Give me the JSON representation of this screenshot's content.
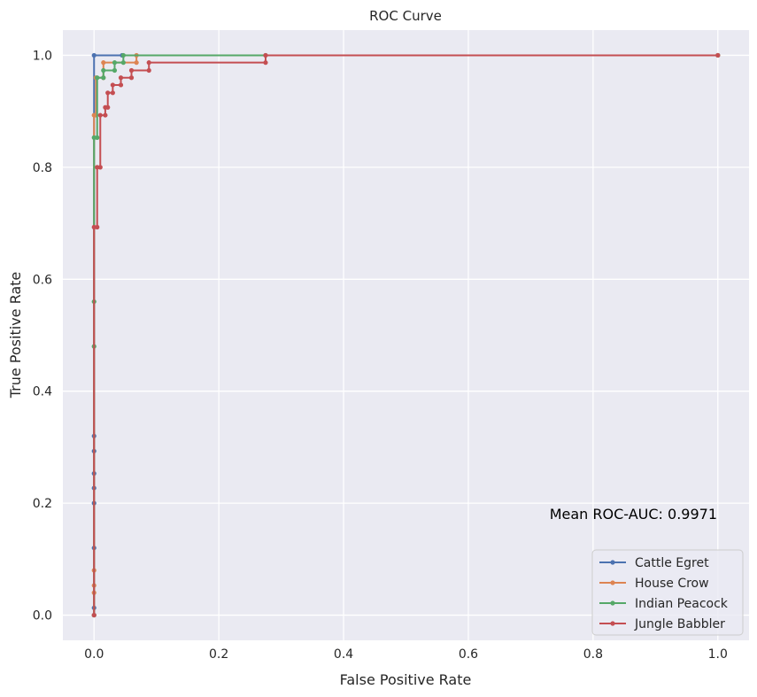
{
  "chart_data": {
    "type": "line",
    "title": "ROC Curve",
    "xlabel": "False Positive Rate",
    "ylabel": "True Positive Rate",
    "xlim": [
      -0.05,
      1.05
    ],
    "ylim": [
      -0.045,
      1.045
    ],
    "xticks": [
      0.0,
      0.2,
      0.4,
      0.6,
      0.8,
      1.0
    ],
    "yticks": [
      0.0,
      0.2,
      0.4,
      0.6,
      0.8,
      1.0
    ],
    "grid": true,
    "legend_position": "lower-right",
    "annotation": "Mean ROC-AUC: 0.9971",
    "series": [
      {
        "name": "Cattle Egret",
        "color": "#4c72b0",
        "points": [
          [
            0,
            0
          ],
          [
            0,
            0.013
          ],
          [
            0,
            0.12
          ],
          [
            0,
            0.2
          ],
          [
            0,
            0.227
          ],
          [
            0,
            0.253
          ],
          [
            0,
            0.293
          ],
          [
            0,
            0.32
          ],
          [
            0,
            1.0
          ],
          [
            0.045,
            1.0
          ],
          [
            1.0,
            1.0
          ]
        ]
      },
      {
        "name": "House Crow",
        "color": "#dd8452",
        "points": [
          [
            0,
            0
          ],
          [
            0,
            0.04
          ],
          [
            0,
            0.053
          ],
          [
            0,
            0.08
          ],
          [
            0,
            0.893
          ],
          [
            0.003,
            0.893
          ],
          [
            0.003,
            0.96
          ],
          [
            0.015,
            0.96
          ],
          [
            0.015,
            0.987
          ],
          [
            0.068,
            0.987
          ],
          [
            0.068,
            1.0
          ],
          [
            1.0,
            1.0
          ]
        ]
      },
      {
        "name": "Indian Peacock",
        "color": "#55a868",
        "points": [
          [
            0,
            0
          ],
          [
            0,
            0.48
          ],
          [
            0,
            0.56
          ],
          [
            0,
            0.853
          ],
          [
            0.005,
            0.853
          ],
          [
            0.005,
            0.96
          ],
          [
            0.015,
            0.96
          ],
          [
            0.015,
            0.973
          ],
          [
            0.033,
            0.973
          ],
          [
            0.033,
            0.987
          ],
          [
            0.047,
            0.987
          ],
          [
            0.047,
            1.0
          ],
          [
            0.275,
            1.0
          ],
          [
            1.0,
            1.0
          ]
        ]
      },
      {
        "name": "Jungle Babbler",
        "color": "#c44e52",
        "points": [
          [
            0,
            0
          ],
          [
            0,
            0.693
          ],
          [
            0.005,
            0.693
          ],
          [
            0.005,
            0.8
          ],
          [
            0.01,
            0.8
          ],
          [
            0.01,
            0.893
          ],
          [
            0.018,
            0.893
          ],
          [
            0.018,
            0.907
          ],
          [
            0.022,
            0.907
          ],
          [
            0.022,
            0.933
          ],
          [
            0.03,
            0.933
          ],
          [
            0.03,
            0.947
          ],
          [
            0.043,
            0.947
          ],
          [
            0.043,
            0.96
          ],
          [
            0.06,
            0.96
          ],
          [
            0.06,
            0.973
          ],
          [
            0.088,
            0.973
          ],
          [
            0.088,
            0.987
          ],
          [
            0.275,
            0.987
          ],
          [
            0.275,
            1.0
          ],
          [
            1.0,
            1.0
          ]
        ]
      }
    ]
  }
}
